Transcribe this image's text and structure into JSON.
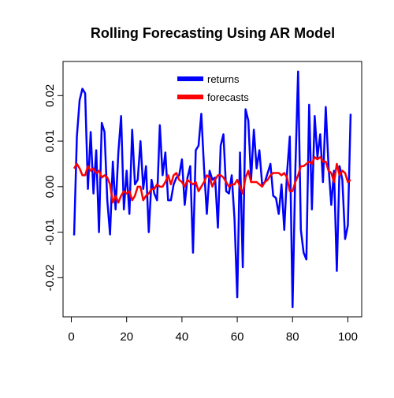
{
  "chart_data": {
    "type": "line",
    "title": "Rolling Forecasting Using AR Model",
    "x": [
      1,
      2,
      3,
      4,
      5,
      6,
      7,
      8,
      9,
      10,
      11,
      12,
      13,
      14,
      15,
      16,
      17,
      18,
      19,
      20,
      21,
      22,
      23,
      24,
      25,
      26,
      27,
      28,
      29,
      30,
      31,
      32,
      33,
      34,
      35,
      36,
      37,
      38,
      39,
      40,
      41,
      42,
      43,
      44,
      45,
      46,
      47,
      48,
      49,
      50,
      51,
      52,
      53,
      54,
      55,
      56,
      57,
      58,
      59,
      60,
      61,
      62,
      63,
      64,
      65,
      66,
      67,
      68,
      69,
      70,
      71,
      72,
      73,
      74,
      75,
      76,
      77,
      78,
      79,
      80,
      81,
      82,
      83,
      84,
      85,
      86,
      87,
      88,
      89,
      90,
      91,
      92,
      93,
      94,
      95,
      96,
      97,
      98,
      99,
      100,
      101
    ],
    "series": [
      {
        "name": "returns",
        "color": "#0000ff",
        "values": [
          -0.0107,
          0.011,
          0.019,
          0.0215,
          0.0205,
          -0.0005,
          0.012,
          -0.0015,
          0.008,
          -0.01,
          0.014,
          0.012,
          -0.003,
          -0.0105,
          0.0055,
          -0.005,
          0.0075,
          0.0155,
          -0.005,
          0.0035,
          -0.006,
          0.0125,
          0.0005,
          0.0015,
          0.01,
          -0.0005,
          0.0045,
          -0.01,
          0.0015,
          -0.0015,
          -0.003,
          0.0135,
          0.0025,
          0.0075,
          -0.003,
          -0.003,
          0.0005,
          0.002,
          0.0025,
          0.006,
          -0.004,
          0.002,
          0.0045,
          -0.0145,
          0.008,
          0.009,
          0.016,
          0.004,
          -0.006,
          0.0035,
          0.0015,
          0.002,
          -0.009,
          0.009,
          0.0115,
          -0.001,
          -0.0015,
          0.0025,
          -0.007,
          -0.0243,
          0.0075,
          -0.0177,
          0.017,
          0.0145,
          0.0015,
          0.0125,
          0.004,
          0.008,
          0.0005,
          0.001,
          0.003,
          0.005,
          -0.002,
          -0.0025,
          -0.006,
          0.0005,
          -0.0095,
          0.003,
          0.011,
          -0.0265,
          0.0035,
          0.0253,
          -0.0095,
          -0.0145,
          -0.016,
          0.018,
          -0.005,
          0.0155,
          0.0065,
          0.0115,
          0.001,
          0.0175,
          0.0045,
          -0.004,
          0.0035,
          -0.0185,
          0.0045,
          0.0015,
          -0.0115,
          -0.0085,
          0.016
        ]
      },
      {
        "name": "forecasts",
        "color": "#ff0000",
        "values": [
          0.004,
          0.005,
          0.004,
          0.0025,
          0.0025,
          0.0045,
          0.0035,
          0.004,
          0.003,
          0.0035,
          0.002,
          0.0025,
          0.002,
          0.0005,
          -0.0035,
          -0.002,
          -0.0035,
          -0.002,
          -0.001,
          -0.0015,
          -0.001,
          -0.003,
          -0.002,
          0.0,
          0.0,
          -0.003,
          -0.002,
          -0.0015,
          -0.0005,
          -0.0005,
          0.0005,
          0.0,
          0.0,
          0.001,
          0.0025,
          0.0005,
          0.0025,
          0.003,
          0.0015,
          0.001,
          0.0,
          0.0015,
          0.001,
          0.0005,
          0.001,
          -0.001,
          0.0,
          0.001,
          0.0025,
          0.002,
          0.0,
          0.0015,
          0.0025,
          0.0025,
          0.002,
          0.001,
          0.0,
          0.0005,
          0.0005,
          0.0015,
          0.0,
          -0.0015,
          0.002,
          0.0035,
          0.001,
          0.001,
          0.001,
          0.0005,
          0.0,
          0.001,
          0.0015,
          0.0025,
          0.003,
          0.003,
          0.003,
          0.0025,
          0.003,
          0.002,
          -0.001,
          -0.001,
          0.001,
          0.0025,
          0.0045,
          0.0045,
          0.005,
          0.0055,
          0.005,
          0.0065,
          0.006,
          0.0065,
          0.0055,
          0.0055,
          0.0035,
          0.003,
          0.001,
          0.005,
          0.0025,
          0.0035,
          0.003,
          0.001,
          0.0015
        ]
      }
    ],
    "xlim": [
      -3,
      105
    ],
    "xticks": [
      0,
      20,
      40,
      60,
      80,
      100
    ],
    "ylim": [
      -0.0286,
      0.0275
    ],
    "yticks": [
      -0.02,
      -0.01,
      {
        "value": 0,
        "label": "0.00"
      },
      0.01,
      0.02
    ],
    "legend": "top"
  }
}
